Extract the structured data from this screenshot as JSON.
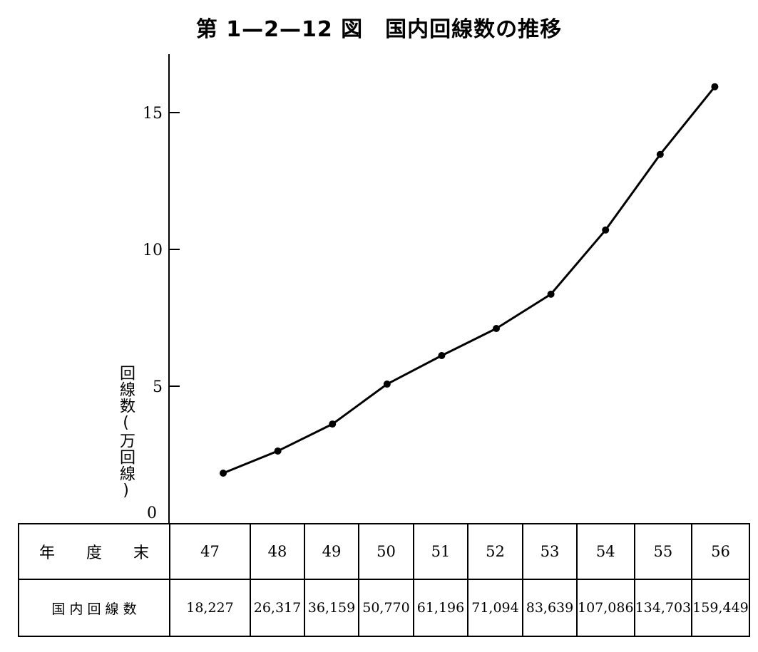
{
  "title": "第 1—2—12 図　国内回線数の推移",
  "chart_data": {
    "type": "line",
    "title": "第 1—2—12 図　国内回線数の推移",
    "xlabel": "",
    "ylabel": "回線数(万回線)",
    "ylim": [
      0,
      17
    ],
    "yticks": [
      5,
      10,
      15
    ],
    "categories": [
      "47",
      "48",
      "49",
      "50",
      "51",
      "52",
      "53",
      "54",
      "55",
      "56"
    ],
    "series": [
      {
        "values": [
          1.8227,
          2.6317,
          3.6159,
          5.077,
          6.1196,
          7.1094,
          8.3639,
          10.7086,
          13.4703,
          15.9449
        ]
      }
    ],
    "grid": false,
    "legend": "none",
    "color": "#000000"
  },
  "table": {
    "row_header_year": "年　　度　　末",
    "row_header_count": "国 内 回 線 数",
    "years": [
      "47",
      "48",
      "49",
      "50",
      "51",
      "52",
      "53",
      "54",
      "55",
      "56"
    ],
    "counts": [
      "18,227",
      "26,317",
      "36,159",
      "50,770",
      "61,196",
      "71,094",
      "83,639",
      "107,086",
      "134,703",
      "159,449"
    ]
  },
  "y_zero_label": "0"
}
